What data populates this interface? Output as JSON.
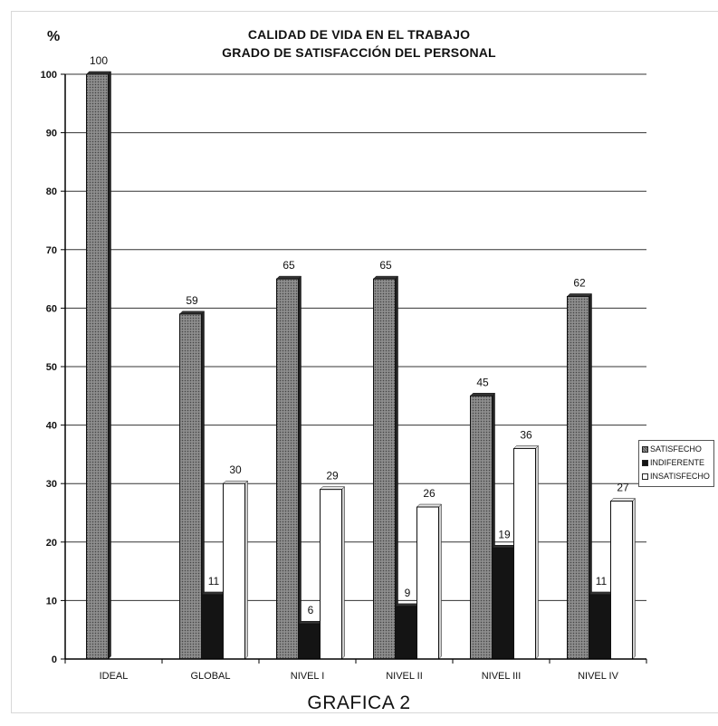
{
  "chart_data": {
    "type": "bar",
    "title": "CALIDAD DE VIDA EN EL TRABAJO",
    "subtitle": "GRADO DE SATISFACCIÓN DEL PERSONAL",
    "ylabel": "%",
    "xlabel": "",
    "caption": "GRAFICA 2",
    "categories": [
      "IDEAL",
      "GLOBAL",
      "NIVEL I",
      "NIVEL II",
      "NIVEL III",
      "NIVEL IV"
    ],
    "series": [
      {
        "name": "SATISFECHO",
        "color": "#7c7c7c",
        "values": [
          100,
          59,
          65,
          65,
          45,
          62
        ]
      },
      {
        "name": "INDIFERENTE",
        "color": "#141414",
        "values": [
          null,
          11,
          6,
          9,
          19,
          11
        ]
      },
      {
        "name": "INSATISFECHO",
        "color": "#ffffff",
        "values": [
          null,
          30,
          29,
          26,
          36,
          27
        ]
      }
    ],
    "ylim": [
      0,
      100
    ],
    "yticks": [
      0,
      10,
      20,
      30,
      40,
      50,
      60,
      70,
      80,
      90,
      100
    ],
    "grid": true,
    "legend_position": "right"
  }
}
